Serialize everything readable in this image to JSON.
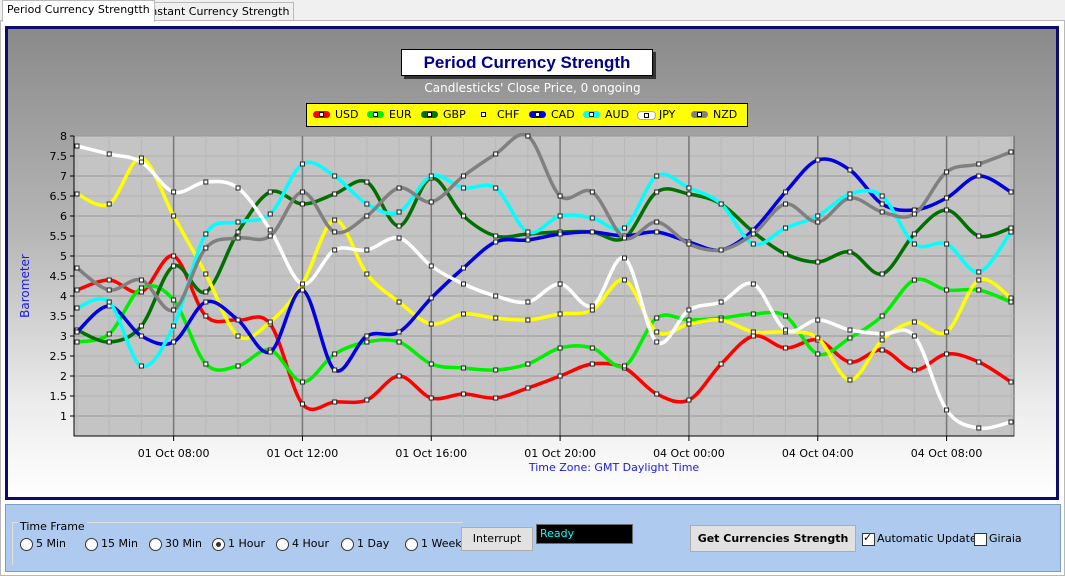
{
  "tabs": [
    {
      "label": "Period Currency Strengtth"
    },
    {
      "label": "Instant Currency Strength"
    }
  ],
  "chart_data": {
    "type": "line",
    "title": "Period Currency Strength",
    "subtitle": "Candlesticks' Close Price, 0 ongoing",
    "xlabel": "Time Zone: GMT Daylight Time",
    "ylabel": "Barometer",
    "ylim": [
      0.5,
      8
    ],
    "y_ticks": [
      "1",
      "1.5",
      "2",
      "2.5",
      "3",
      "3.5",
      "4",
      "4.5",
      "5",
      "5.5",
      "6",
      "6.5",
      "7",
      "7.5",
      "8"
    ],
    "x_tick_labels": [
      "01 Oct 08:00",
      "01 Oct 12:00",
      "01 Oct 16:00",
      "01 Oct 20:00",
      "04 Oct 00:00",
      "04 Oct 04:00",
      "04 Oct 08:00"
    ],
    "x_tick_index": [
      3,
      7,
      11,
      15,
      19,
      23,
      27
    ],
    "grid": true,
    "legend_position": "top",
    "series": [
      {
        "name": "USD",
        "color": "#ff0000",
        "values": [
          4.15,
          4.4,
          4.1,
          5.0,
          3.5,
          3.4,
          3.3,
          1.3,
          1.35,
          1.4,
          2.0,
          1.45,
          1.55,
          1.45,
          1.7,
          2.0,
          2.3,
          2.2,
          1.55,
          1.4,
          2.3,
          3.0,
          2.7,
          2.9,
          2.35,
          2.65,
          2.15,
          2.55,
          2.35,
          1.85
        ]
      },
      {
        "name": "EUR",
        "color": "#00ee00",
        "values": [
          2.85,
          3.05,
          4.2,
          3.9,
          2.3,
          2.25,
          2.65,
          1.85,
          2.55,
          2.85,
          2.85,
          2.3,
          2.2,
          2.15,
          2.3,
          2.7,
          2.7,
          2.25,
          3.45,
          3.4,
          3.45,
          3.55,
          3.5,
          2.55,
          2.95,
          3.5,
          4.4,
          4.15,
          4.15,
          3.85
        ]
      },
      {
        "name": "GBP",
        "color": "#007000",
        "values": [
          3.15,
          2.85,
          3.25,
          4.75,
          4.1,
          5.6,
          6.6,
          6.3,
          6.55,
          6.85,
          5.75,
          6.95,
          6.0,
          5.5,
          5.55,
          5.6,
          5.6,
          5.45,
          6.6,
          6.55,
          6.3,
          5.6,
          5.05,
          4.85,
          5.1,
          4.55,
          5.55,
          6.15,
          5.5,
          5.7
        ]
      },
      {
        "name": "CHF",
        "color": "#ffff00",
        "values": [
          6.55,
          6.3,
          7.45,
          6.0,
          4.55,
          3.0,
          3.35,
          4.3,
          5.9,
          4.55,
          3.85,
          3.3,
          3.55,
          3.45,
          3.4,
          3.55,
          3.65,
          4.4,
          3.1,
          3.3,
          3.4,
          3.1,
          3.1,
          2.95,
          1.9,
          2.9,
          3.35,
          3.1,
          4.4,
          3.95
        ]
      },
      {
        "name": "CAD",
        "color": "#0000e0",
        "values": [
          3.1,
          3.75,
          3.0,
          2.85,
          3.85,
          3.4,
          2.6,
          4.15,
          2.15,
          3.0,
          3.1,
          3.95,
          4.7,
          5.35,
          5.4,
          5.55,
          5.6,
          5.5,
          5.6,
          5.35,
          5.15,
          5.65,
          6.6,
          7.4,
          7.15,
          6.3,
          6.15,
          6.45,
          7.0,
          6.6
        ]
      },
      {
        "name": "AUD",
        "color": "#00ffff",
        "values": [
          3.7,
          3.85,
          2.25,
          3.25,
          5.55,
          5.85,
          6.05,
          7.3,
          7.0,
          6.3,
          6.1,
          7.0,
          6.7,
          6.7,
          5.6,
          6.0,
          5.95,
          5.7,
          7.0,
          6.7,
          6.3,
          5.3,
          5.7,
          6.0,
          6.55,
          6.5,
          5.3,
          5.3,
          4.6,
          5.6
        ]
      },
      {
        "name": "JPY",
        "color": "#ffffff",
        "values": [
          7.75,
          7.55,
          7.35,
          6.6,
          6.85,
          6.7,
          5.65,
          4.3,
          5.15,
          5.15,
          5.45,
          4.75,
          4.3,
          4.0,
          3.85,
          4.3,
          3.75,
          4.95,
          2.85,
          3.65,
          3.85,
          4.3,
          3.15,
          3.4,
          3.15,
          3.05,
          3.0,
          1.15,
          0.7,
          0.85
        ]
      },
      {
        "name": "NZD",
        "color": "#808080",
        "values": [
          4.7,
          4.15,
          4.4,
          3.65,
          5.2,
          5.45,
          5.5,
          6.6,
          5.6,
          6.0,
          6.7,
          6.35,
          7.0,
          7.55,
          8.0,
          6.5,
          6.6,
          5.45,
          5.85,
          5.3,
          5.15,
          5.55,
          6.3,
          5.85,
          6.45,
          6.1,
          6.05,
          7.1,
          7.3,
          7.6
        ]
      }
    ]
  },
  "controls": {
    "time_frame_label": "Time Frame",
    "time_frames": [
      {
        "label": "5 Min",
        "selected": false
      },
      {
        "label": "15 Min",
        "selected": false
      },
      {
        "label": "30 Min",
        "selected": false
      },
      {
        "label": "1 Hour",
        "selected": true
      },
      {
        "label": "4 Hour",
        "selected": false
      },
      {
        "label": "1 Day",
        "selected": false
      },
      {
        "label": "1 Week",
        "selected": false
      }
    ],
    "interrupt_label": "Interrupt",
    "status_text": "Ready",
    "get_strength_label": "Get Currencies Strength",
    "auto_update_label": "Automatic Update",
    "auto_update_checked": true,
    "giraia_label": "Giraia",
    "giraia_checked": false
  }
}
